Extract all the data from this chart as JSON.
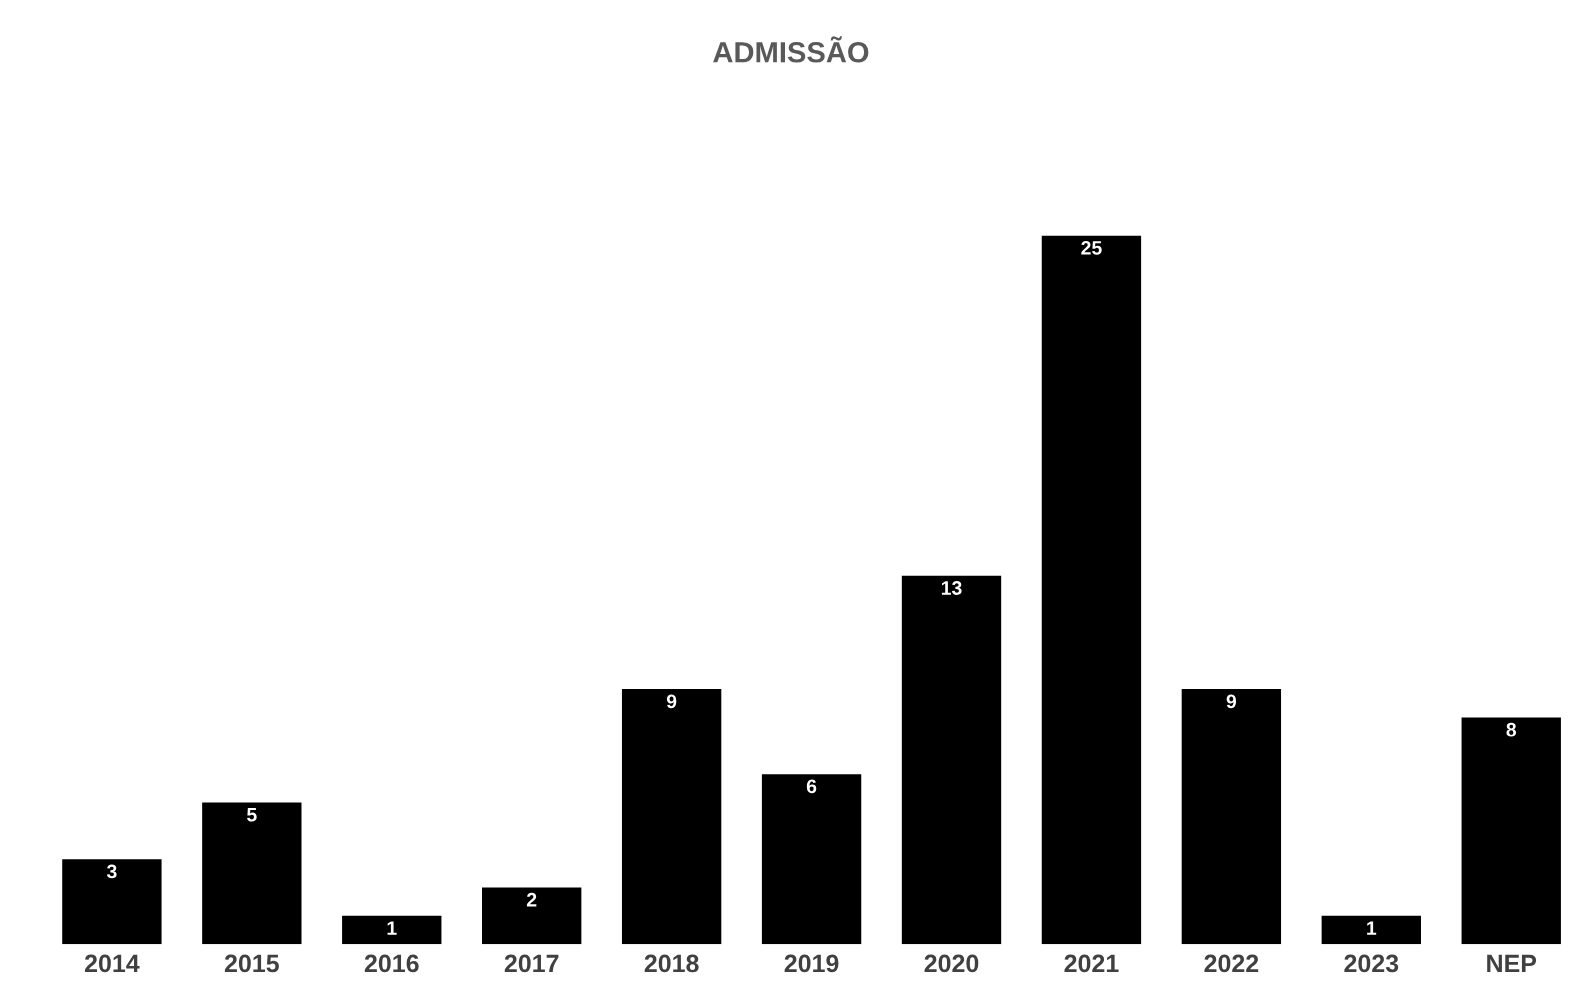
{
  "chart_data": {
    "type": "bar",
    "title": "ADMISSÃO",
    "categories": [
      "2014",
      "2015",
      "2016",
      "2017",
      "2018",
      "2019",
      "2020",
      "2021",
      "2022",
      "2023",
      "NEP"
    ],
    "values": [
      3,
      5,
      1,
      2,
      9,
      6,
      13,
      25,
      9,
      1,
      8
    ],
    "color": "#000000",
    "data_labels": true,
    "grid": false,
    "legend": false,
    "tick_labels": "x"
  }
}
